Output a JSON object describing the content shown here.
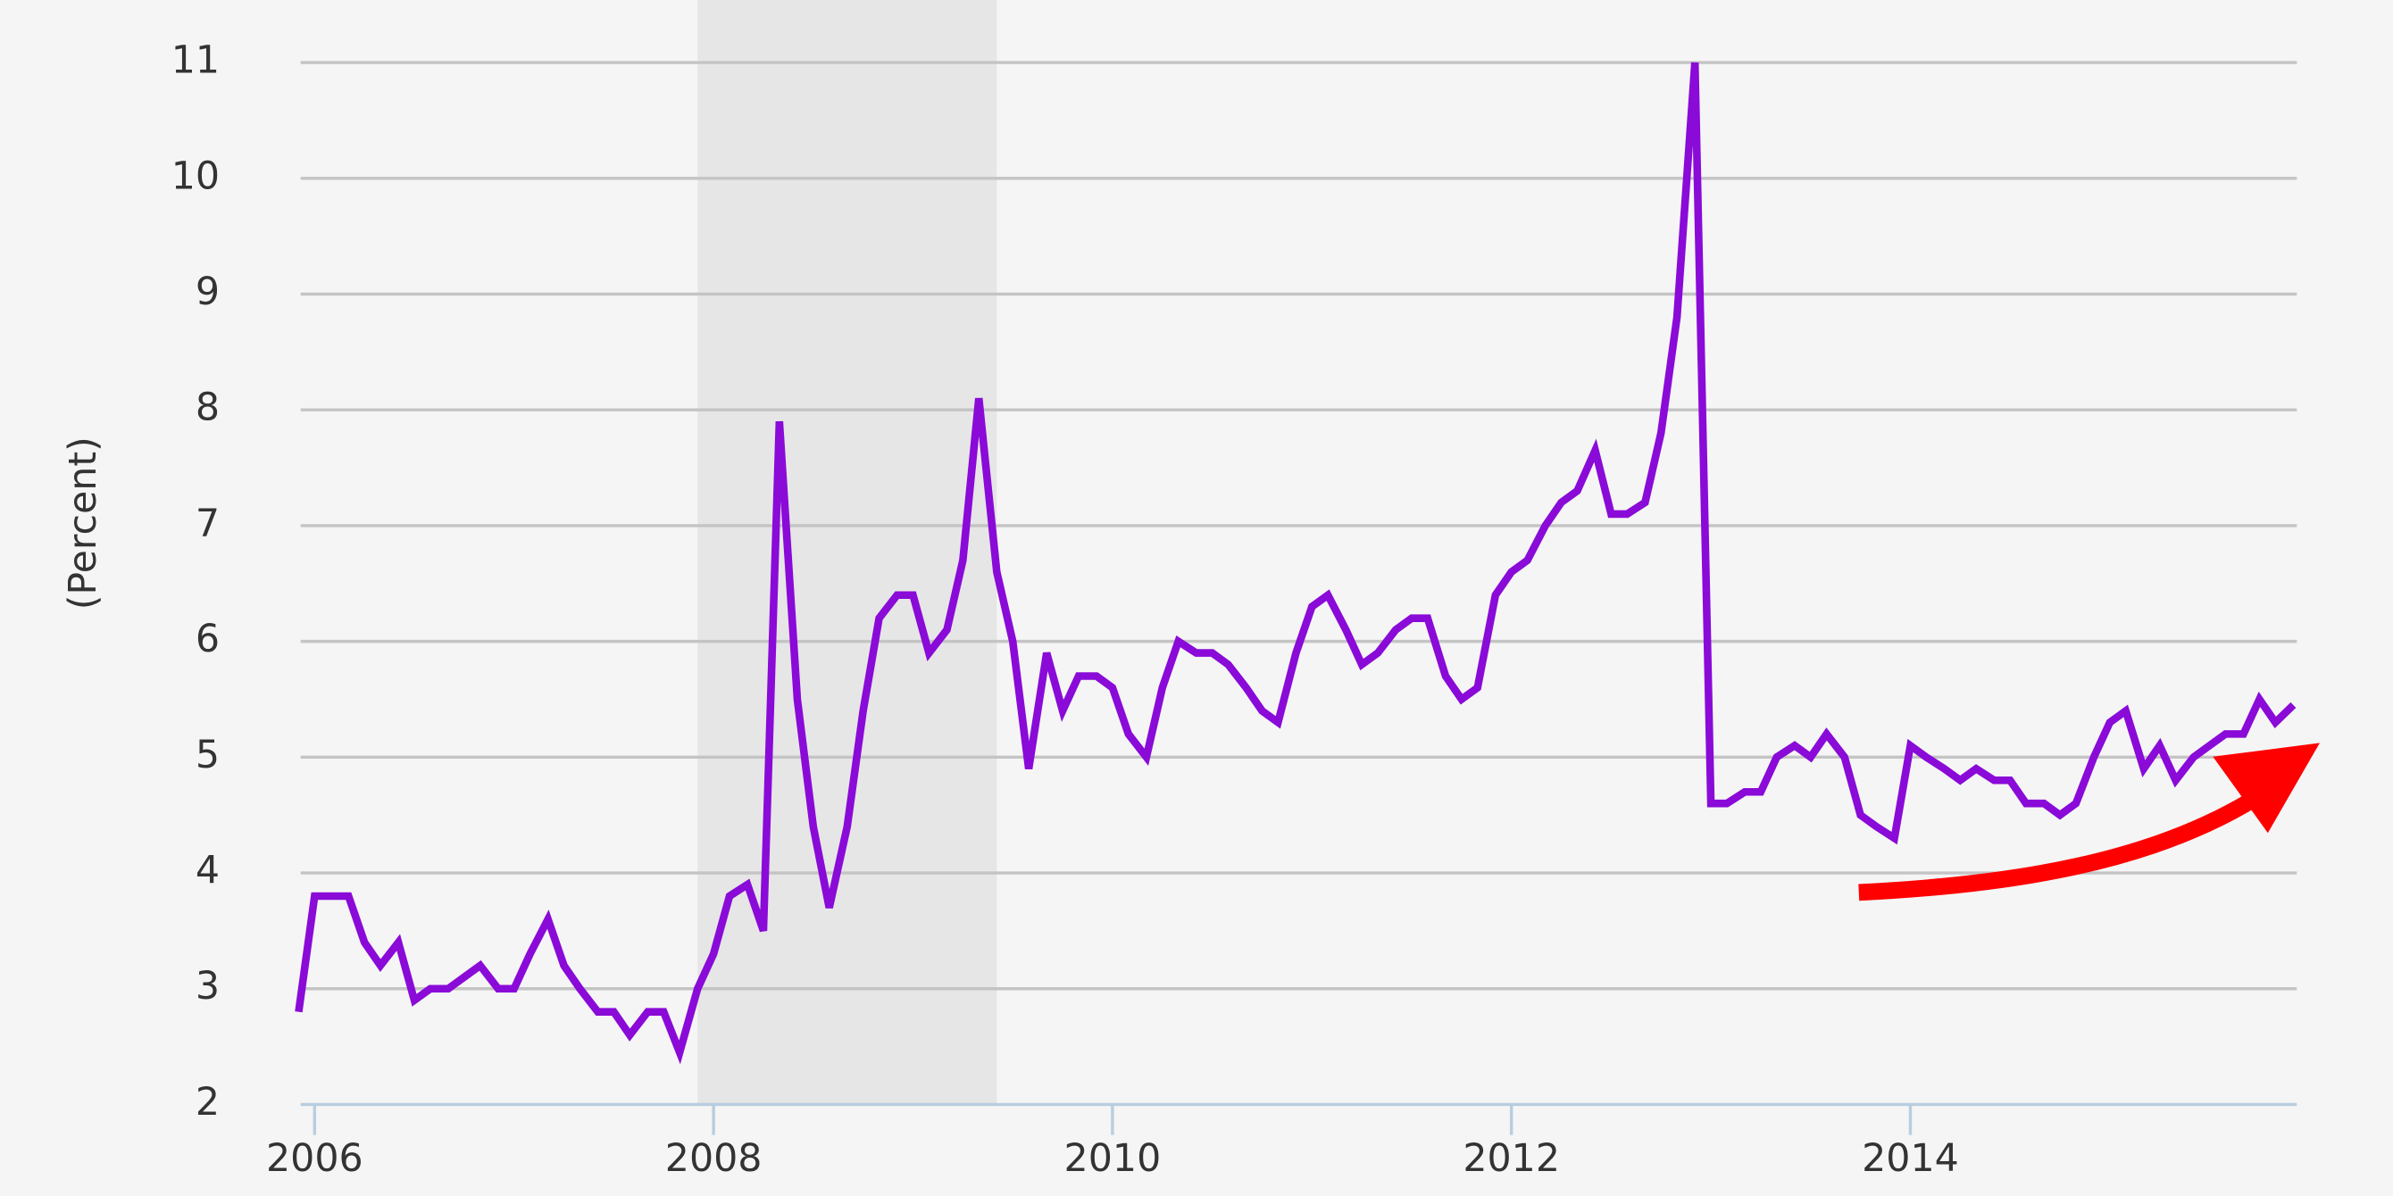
{
  "chart_data": {
    "type": "line",
    "y_label": "(Percent)",
    "x": [
      2005.92,
      2006.0,
      2006.08,
      2006.17,
      2006.25,
      2006.33,
      2006.42,
      2006.5,
      2006.58,
      2006.67,
      2006.75,
      2006.83,
      2006.92,
      2007.0,
      2007.08,
      2007.17,
      2007.25,
      2007.33,
      2007.42,
      2007.5,
      2007.58,
      2007.67,
      2007.75,
      2007.83,
      2007.92,
      2008.0,
      2008.08,
      2008.17,
      2008.25,
      2008.33,
      2008.42,
      2008.5,
      2008.58,
      2008.67,
      2008.75,
      2008.83,
      2008.92,
      2009.0,
      2009.08,
      2009.17,
      2009.25,
      2009.33,
      2009.42,
      2009.5,
      2009.58,
      2009.67,
      2009.75,
      2009.83,
      2009.92,
      2010.0,
      2010.08,
      2010.17,
      2010.25,
      2010.33,
      2010.42,
      2010.5,
      2010.58,
      2010.67,
      2010.75,
      2010.83,
      2010.92,
      2011.0,
      2011.08,
      2011.17,
      2011.25,
      2011.33,
      2011.42,
      2011.5,
      2011.58,
      2011.67,
      2011.75,
      2011.83,
      2011.92,
      2012.0,
      2012.08,
      2012.17,
      2012.25,
      2012.33,
      2012.42,
      2012.5,
      2012.58,
      2012.67,
      2012.75,
      2012.83,
      2012.92,
      2013.0,
      2013.08,
      2013.17,
      2013.25,
      2013.33,
      2013.42,
      2013.5,
      2013.58,
      2013.67,
      2013.75,
      2013.83,
      2013.92,
      2014.0,
      2014.08,
      2014.17,
      2014.25,
      2014.33,
      2014.42,
      2014.5,
      2014.58,
      2014.67,
      2014.75,
      2014.83,
      2014.92,
      2015.0,
      2015.08,
      2015.17,
      2015.25,
      2015.33,
      2015.42,
      2015.5,
      2015.58,
      2015.67,
      2015.75,
      2015.83,
      2015.92
    ],
    "series": [
      {
        "color": "#8a0ad8",
        "values": [
          2.8,
          3.8,
          3.8,
          3.8,
          3.4,
          3.2,
          3.4,
          2.9,
          3.0,
          3.0,
          3.1,
          3.2,
          3.0,
          3.0,
          3.3,
          3.6,
          3.2,
          3.0,
          2.8,
          2.8,
          2.6,
          2.8,
          2.8,
          2.45,
          3.0,
          3.3,
          3.8,
          3.9,
          3.5,
          7.9,
          5.5,
          4.4,
          3.7,
          4.4,
          5.4,
          6.2,
          6.4,
          6.4,
          5.9,
          6.1,
          6.7,
          8.1,
          6.6,
          6.0,
          4.9,
          5.9,
          5.4,
          5.7,
          5.7,
          5.6,
          5.2,
          5.0,
          5.6,
          6.0,
          5.9,
          5.9,
          5.8,
          5.6,
          5.4,
          5.3,
          5.9,
          6.3,
          6.4,
          6.1,
          5.8,
          5.9,
          6.1,
          6.2,
          6.2,
          5.7,
          5.5,
          5.6,
          6.4,
          6.6,
          6.7,
          7.0,
          7.2,
          7.3,
          7.65,
          7.1,
          7.1,
          7.2,
          7.8,
          8.8,
          11.0,
          4.6,
          4.6,
          4.7,
          4.7,
          5.0,
          5.1,
          5.0,
          5.2,
          5.0,
          4.5,
          4.4,
          4.3,
          5.1,
          5.0,
          4.9,
          4.8,
          4.9,
          4.8,
          4.8,
          4.6,
          4.6,
          4.5,
          4.6,
          5.0,
          5.3,
          5.4,
          4.9,
          5.1,
          4.8,
          5.0,
          5.1,
          5.2,
          5.2,
          5.5,
          5.3,
          5.45
        ]
      }
    ],
    "xlim": [
      2005.93,
      2015.93
    ],
    "xticks": [
      2006,
      2008,
      2010,
      2012,
      2014
    ],
    "ylim": [
      2,
      11
    ],
    "yticks": [
      2,
      3,
      4,
      5,
      6,
      7,
      8,
      9,
      10,
      11
    ],
    "grid": true,
    "shaded_region": [
      2007.92,
      2009.42
    ]
  }
}
